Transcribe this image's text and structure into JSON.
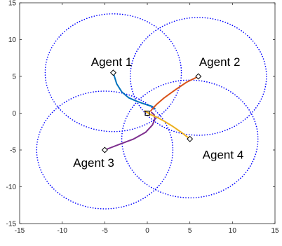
{
  "chart_data": {
    "type": "line",
    "xlim": [
      -15,
      15
    ],
    "ylim": [
      -15,
      15
    ],
    "xticks": [
      -15,
      -10,
      -5,
      0,
      5,
      10,
      15
    ],
    "yticks": [
      -15,
      -10,
      -5,
      0,
      5,
      10,
      15
    ],
    "grid": false,
    "legend": "none",
    "aspect": "equal",
    "circles": [
      {
        "center": [
          -4,
          5.5
        ],
        "radius": 8,
        "style": "dotted",
        "color": "#0000ff"
      },
      {
        "center": [
          6,
          5
        ],
        "radius": 8,
        "style": "dotted",
        "color": "#0000ff"
      },
      {
        "center": [
          -5,
          -5
        ],
        "radius": 8,
        "style": "dotted",
        "color": "#0000ff"
      },
      {
        "center": [
          5,
          -3.5
        ],
        "radius": 8,
        "style": "dotted",
        "color": "#0000ff"
      }
    ],
    "series": [
      {
        "color": "#0072bd",
        "x": [
          -4,
          -3.6,
          -3,
          -2.2,
          -1.2,
          -0.2,
          0.6,
          0.9
        ],
        "y": [
          5.5,
          4.0,
          2.9,
          2.1,
          1.6,
          1.2,
          0.9,
          0.6
        ]
      },
      {
        "color": "#d95319",
        "x": [
          6,
          4.6,
          3.2,
          2.0,
          1.1,
          0.6,
          0.4
        ],
        "y": [
          5,
          4.2,
          3.1,
          2.1,
          1.2,
          0.6,
          0.3
        ]
      },
      {
        "color": "#7e2f8e",
        "x": [
          -5,
          -3.2,
          -1.6,
          -0.2,
          0.6,
          0.9,
          0.8,
          0.5
        ],
        "y": [
          -5,
          -4.2,
          -3.5,
          -2.6,
          -1.6,
          -0.8,
          -0.2,
          0.1
        ]
      },
      {
        "color": "#edb120",
        "x": [
          5,
          4.0,
          3.0,
          2.0,
          1.2,
          0.4,
          0.0,
          -0.3
        ],
        "y": [
          -3.5,
          -2.6,
          -1.8,
          -1.1,
          -0.6,
          -0.2,
          0.1,
          0.3
        ]
      }
    ],
    "start_markers": [
      [
        -4,
        5.5
      ],
      [
        6,
        5
      ],
      [
        -5,
        -5
      ],
      [
        5,
        -3.5
      ]
    ],
    "center_marker": [
      0,
      0
    ],
    "labels": [
      {
        "text": "Agent 1",
        "x": -4.2,
        "y": 7.0
      },
      {
        "text": "Agent 2",
        "x": 8.5,
        "y": 7.0
      },
      {
        "text": "Agent 3",
        "x": -6.3,
        "y": -6.7
      },
      {
        "text": "Agent 4",
        "x": 8.9,
        "y": -5.6
      }
    ]
  }
}
